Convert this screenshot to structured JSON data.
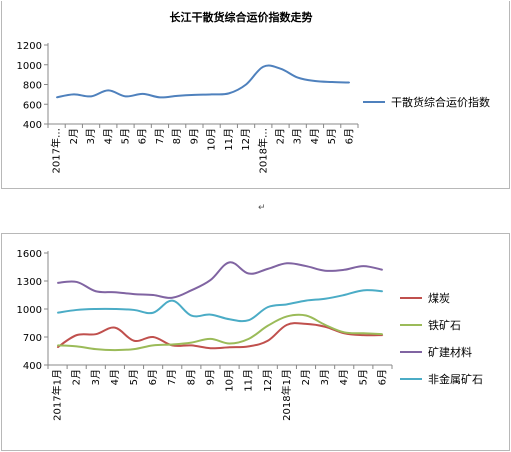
{
  "chart_data": [
    {
      "type": "line",
      "title": "长江干散货综合运价指数走势",
      "xlabel": "",
      "ylabel": "",
      "categories": [
        "2017年…",
        "2月",
        "3月",
        "4月",
        "5月",
        "6月",
        "7月",
        "8月",
        "9月",
        "10月",
        "11月",
        "12月",
        "2018年…",
        "2月",
        "3月",
        "4月",
        "5月",
        "6月"
      ],
      "ylim": [
        400,
        1200
      ],
      "yticks": [
        400,
        600,
        800,
        1000,
        1200
      ],
      "series": [
        {
          "name": "干散货综合运价指数",
          "color": "#4f81bd",
          "values": [
            670,
            700,
            680,
            740,
            680,
            705,
            670,
            685,
            695,
            700,
            710,
            800,
            980,
            960,
            870,
            835,
            825,
            820
          ]
        }
      ],
      "legend": "right",
      "grid": false
    },
    {
      "type": "line",
      "title": "",
      "xlabel": "",
      "ylabel": "",
      "categories": [
        "2017年1月",
        "2月",
        "3月",
        "4月",
        "5月",
        "6月",
        "7月",
        "8月",
        "9月",
        "10月",
        "11月",
        "12月",
        "2018年1月",
        "2月",
        "3月",
        "4月",
        "5月",
        "6月"
      ],
      "ylim": [
        400,
        1600
      ],
      "yticks": [
        400,
        700,
        1000,
        1300,
        1600
      ],
      "series": [
        {
          "name": "煤炭",
          "color": "#c0504d",
          "values": [
            590,
            720,
            730,
            800,
            660,
            700,
            610,
            610,
            580,
            590,
            600,
            660,
            830,
            840,
            810,
            740,
            720,
            720
          ]
        },
        {
          "name": "铁矿石",
          "color": "#9bbb59",
          "values": [
            610,
            600,
            570,
            560,
            570,
            610,
            620,
            640,
            680,
            630,
            680,
            820,
            920,
            930,
            830,
            750,
            740,
            730
          ]
        },
        {
          "name": "矿建材料",
          "color": "#8064a2",
          "values": [
            1280,
            1290,
            1190,
            1180,
            1160,
            1150,
            1120,
            1200,
            1310,
            1500,
            1380,
            1430,
            1490,
            1460,
            1410,
            1420,
            1460,
            1420
          ]
        },
        {
          "name": "非金属矿石",
          "color": "#4bacc6",
          "values": [
            960,
            990,
            1000,
            1000,
            990,
            960,
            1090,
            930,
            940,
            890,
            880,
            1020,
            1050,
            1090,
            1110,
            1150,
            1200,
            1190
          ]
        }
      ],
      "legend": "right",
      "grid": false
    }
  ],
  "page": {
    "mark": "↵"
  }
}
